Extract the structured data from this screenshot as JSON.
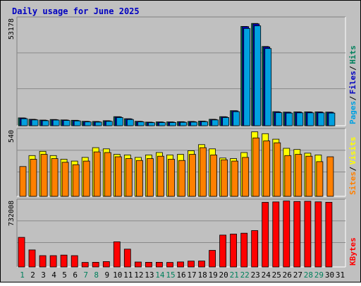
{
  "colors": {
    "background": "#c0c0c0",
    "plot_bg": "#c0c0c0",
    "grid": "#8a8a8a",
    "title": "#0000c0",
    "hits": "#00805c",
    "files": "#0000c0",
    "pages": "#00a0e0",
    "visits": "#ffff00",
    "sites": "#ff8000",
    "kbytes": "#ff0000",
    "weekday_label": "#000000",
    "weekend_label": "#00805c"
  },
  "chart_data": {
    "title": "Daily usage for June 2025",
    "days": [
      "1",
      "2",
      "3",
      "4",
      "5",
      "6",
      "7",
      "8",
      "9",
      "10",
      "11",
      "12",
      "13",
      "14",
      "15",
      "16",
      "17",
      "18",
      "19",
      "20",
      "21",
      "22",
      "23",
      "24",
      "25",
      "26",
      "27",
      "28",
      "29",
      "30",
      "31"
    ],
    "weekend_days": [
      "1",
      "7",
      "8",
      "14",
      "15",
      "21",
      "22",
      "28",
      "29"
    ],
    "panels": [
      {
        "id": "top",
        "type": "bar",
        "max_label": "53178",
        "ylim": [
          0,
          53178
        ],
        "legend": [
          {
            "label": "Hits",
            "color_key": "hits"
          },
          {
            "label": "Files",
            "color_key": "files"
          },
          {
            "label": "Pages",
            "color_key": "pages"
          }
        ],
        "legend_seps": [
          "/",
          "/"
        ],
        "series": [
          {
            "name": "Hits",
            "color_key": "hits",
            "values": [
              3900,
              3200,
              2800,
              3100,
              2900,
              2700,
              2200,
              2100,
              2500,
              4500,
              3500,
              2200,
              1800,
              1900,
              1900,
              2000,
              2100,
              2300,
              3200,
              4500,
              7500,
              49500,
              51000,
              39500,
              7000,
              6800,
              6900,
              6900,
              6900,
              6800,
              0
            ]
          },
          {
            "name": "Files",
            "color_key": "files",
            "values": [
              3800,
              3100,
              2700,
              3000,
              2800,
              2600,
              2100,
              2000,
              2400,
              4400,
              3400,
              2100,
              1700,
              1800,
              1800,
              1900,
              2000,
              2200,
              3100,
              4400,
              7400,
              49400,
              50800,
              39300,
              6900,
              6700,
              6800,
              6800,
              6800,
              6700,
              0
            ]
          },
          {
            "name": "Pages",
            "color_key": "pages",
            "values": [
              3500,
              2900,
              2500,
              2800,
              2600,
              2400,
              1900,
              1800,
              2200,
              4100,
              3100,
              1900,
              1500,
              1600,
              1600,
              1700,
              1800,
              2000,
              2900,
              4100,
              7000,
              48500,
              49800,
              38500,
              6500,
              6300,
              6400,
              6400,
              6400,
              6300,
              0
            ]
          }
        ]
      },
      {
        "id": "middle",
        "type": "bar",
        "max_label": "540",
        "ylim": [
          0,
          540
        ],
        "legend": [
          {
            "label": "Visits",
            "color_key": "visits"
          },
          {
            "label": "Sites",
            "color_key": "sites"
          }
        ],
        "legend_seps": [
          "/"
        ],
        "series": [
          {
            "name": "Visits",
            "color_key": "visits",
            "values": [
              0,
              335,
              370,
              335,
              305,
              290,
              320,
              400,
              390,
              345,
              340,
              320,
              340,
              360,
              340,
              345,
              375,
              425,
              390,
              315,
              310,
              360,
              530,
              515,
              470,
              395,
              385,
              355,
              340,
              0,
              0
            ]
          },
          {
            "name": "Sites",
            "color_key": "sites",
            "values": [
              245,
              305,
              345,
              310,
              280,
              260,
              290,
              365,
              360,
              325,
              310,
              295,
              310,
              330,
              305,
              295,
              345,
              400,
              340,
              300,
              290,
              320,
              480,
              455,
              440,
              335,
              345,
              330,
              285,
              325,
              0
            ]
          }
        ]
      },
      {
        "id": "bottom",
        "type": "bar",
        "max_label": "732008",
        "ylim": [
          0,
          732008
        ],
        "legend": [
          {
            "label": "KBytes",
            "color_key": "kbytes"
          }
        ],
        "legend_seps": [],
        "series": [
          {
            "name": "KBytes",
            "color_key": "kbytes",
            "values": [
              330000,
              190000,
              126000,
              126000,
              132000,
              126000,
              50000,
              52000,
              60000,
              280000,
              198000,
              55000,
              52000,
              52000,
              50000,
              56000,
              65000,
              66000,
              185000,
              355000,
              367000,
              376000,
              405000,
              720000,
              725000,
              735000,
              730000,
              732008,
              726000,
              721000,
              0
            ]
          }
        ]
      }
    ]
  }
}
